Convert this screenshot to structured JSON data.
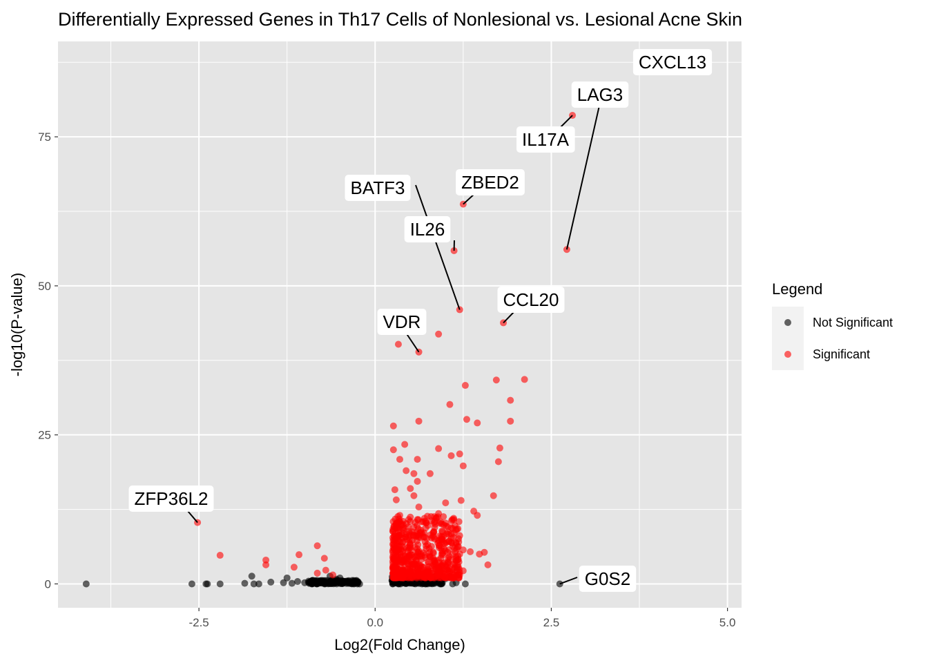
{
  "chart_data": {
    "type": "scatter",
    "title": "Differentially Expressed Genes in Th17 Cells of Nonlesional vs. Lesional Acne Skin",
    "xlabel": "Log2(Fold Change)",
    "ylabel": "-log10(P-value)",
    "xlim": [
      -4.5,
      5.2
    ],
    "ylim": [
      -4,
      91
    ],
    "x_ticks": [
      -2.5,
      0.0,
      2.5,
      5.0
    ],
    "x_tick_labels": [
      "-2.5",
      "0.0",
      "2.5",
      "5.0"
    ],
    "y_ticks": [
      0,
      25,
      50,
      75
    ],
    "y_tick_labels": [
      "0",
      "25",
      "50",
      "75"
    ],
    "grid": true,
    "legend": {
      "title": "Legend",
      "position": "right",
      "entries": [
        {
          "name": "Not Significant",
          "color": "#000000"
        },
        {
          "name": "Significant",
          "color": "#ff0000"
        }
      ]
    },
    "series": [
      {
        "name": "Not Significant",
        "color": "#000000",
        "points": [
          [
            -4.1,
            0
          ],
          [
            -2.6,
            0
          ],
          [
            -2.4,
            0
          ],
          [
            -2.38,
            0
          ],
          [
            -2.2,
            0
          ],
          [
            -1.85,
            0.1
          ],
          [
            -1.75,
            1.3
          ],
          [
            -1.72,
            0
          ],
          [
            -1.65,
            0
          ],
          [
            -1.48,
            0.3
          ],
          [
            -1.3,
            0.2
          ],
          [
            -1.25,
            1.0
          ],
          [
            -1.18,
            0.1
          ],
          [
            -1.1,
            0.4
          ],
          [
            -1.0,
            0.2
          ],
          [
            -0.9,
            0
          ],
          [
            -0.8,
            0.1
          ],
          [
            -0.7,
            0.2
          ],
          [
            -0.64,
            1.3
          ],
          [
            -0.6,
            0.3
          ],
          [
            -0.55,
            0.8
          ],
          [
            -0.5,
            1.0
          ],
          [
            -0.45,
            0.4
          ],
          [
            -0.4,
            0.2
          ],
          [
            -0.35,
            0.1
          ],
          [
            -0.3,
            0
          ],
          [
            -0.25,
            0
          ],
          [
            -0.22,
            0
          ],
          [
            0.25,
            0
          ],
          [
            0.3,
            0.5
          ],
          [
            0.35,
            1.0
          ],
          [
            0.4,
            0.3
          ],
          [
            0.5,
            0.8
          ],
          [
            0.6,
            0.4
          ],
          [
            0.7,
            1.1
          ],
          [
            0.75,
            0.2
          ],
          [
            0.8,
            0.6
          ],
          [
            0.9,
            0.3
          ],
          [
            1.0,
            0.9
          ],
          [
            1.05,
            1.2
          ],
          [
            1.1,
            0
          ],
          [
            1.15,
            0.2
          ],
          [
            1.28,
            0
          ],
          [
            2.62,
            0
          ]
        ]
      },
      {
        "name": "Significant",
        "color": "#ff0000",
        "points": [
          [
            -2.52,
            10.3
          ],
          [
            -2.2,
            4.8
          ],
          [
            -1.55,
            4.0
          ],
          [
            -1.55,
            3.2
          ],
          [
            -1.15,
            2.8
          ],
          [
            -1.08,
            4.9
          ],
          [
            -0.82,
            6.4
          ],
          [
            -0.82,
            1.8
          ],
          [
            -0.72,
            4.3
          ],
          [
            -0.7,
            2.3
          ],
          [
            -0.6,
            1.5
          ],
          [
            0.26,
            26.5
          ],
          [
            0.26,
            22.5
          ],
          [
            0.28,
            15.8
          ],
          [
            0.3,
            14.1
          ],
          [
            0.33,
            10.1
          ],
          [
            0.35,
            20.9
          ],
          [
            0.42,
            23.4
          ],
          [
            0.44,
            19.0
          ],
          [
            0.5,
            16.0
          ],
          [
            0.55,
            14.8
          ],
          [
            0.55,
            18.5
          ],
          [
            0.6,
            20.9
          ],
          [
            0.6,
            17.2
          ],
          [
            0.62,
            12.9
          ],
          [
            0.62,
            27.3
          ],
          [
            0.32,
            8.0
          ],
          [
            0.35,
            11.5
          ],
          [
            0.4,
            9.0
          ],
          [
            0.45,
            7.5
          ],
          [
            0.5,
            11.2
          ],
          [
            0.55,
            9.5
          ],
          [
            0.6,
            10.8
          ],
          [
            0.65,
            8.7
          ],
          [
            0.7,
            11.0
          ],
          [
            0.75,
            9.8
          ],
          [
            0.8,
            7.7
          ],
          [
            0.85,
            10.5
          ],
          [
            0.9,
            11.8
          ],
          [
            0.95,
            8.9
          ],
          [
            1.0,
            10.2
          ],
          [
            1.05,
            7.2
          ],
          [
            1.1,
            9.3
          ],
          [
            1.15,
            6.8
          ],
          [
            1.2,
            8.1
          ],
          [
            1.25,
            5.7
          ],
          [
            0.3,
            3.0
          ],
          [
            0.35,
            5.2
          ],
          [
            0.4,
            2.1
          ],
          [
            0.45,
            4.4
          ],
          [
            0.5,
            6.1
          ],
          [
            0.55,
            3.3
          ],
          [
            0.6,
            5.9
          ],
          [
            0.65,
            2.6
          ],
          [
            0.7,
            4.8
          ],
          [
            0.75,
            3.7
          ],
          [
            0.8,
            6.3
          ],
          [
            0.85,
            2.9
          ],
          [
            0.9,
            4.0
          ],
          [
            0.95,
            5.5
          ],
          [
            1.0,
            3.1
          ],
          [
            1.05,
            4.6
          ],
          [
            1.1,
            2.4
          ],
          [
            1.15,
            3.9
          ],
          [
            1.2,
            5.0
          ],
          [
            1.25,
            2.2
          ],
          [
            0.3,
            1.6
          ],
          [
            0.4,
            1.2
          ],
          [
            0.5,
            2.0
          ],
          [
            0.6,
            1.4
          ],
          [
            0.7,
            1.8
          ],
          [
            0.8,
            1.1
          ],
          [
            0.9,
            1.9
          ],
          [
            1.0,
            1.3
          ],
          [
            1.1,
            1.7
          ],
          [
            1.2,
            1.5
          ],
          [
            0.78,
            18.5
          ],
          [
            0.9,
            22.7
          ],
          [
            1.0,
            13.6
          ],
          [
            1.08,
            21.5
          ],
          [
            1.2,
            21.8
          ],
          [
            1.25,
            19.8
          ],
          [
            1.22,
            14.0
          ],
          [
            1.45,
            11.5
          ],
          [
            1.4,
            12.2
          ],
          [
            1.35,
            5.4
          ],
          [
            1.48,
            5.0
          ],
          [
            1.55,
            5.3
          ],
          [
            1.6,
            3.2
          ],
          [
            1.68,
            14.8
          ],
          [
            1.75,
            20.5
          ],
          [
            1.77,
            22.8
          ],
          [
            1.72,
            34.2
          ],
          [
            1.28,
            33.3
          ],
          [
            1.06,
            30.1
          ],
          [
            1.3,
            27.6
          ],
          [
            1.45,
            27.0
          ],
          [
            1.92,
            27.3
          ],
          [
            1.92,
            30.8
          ],
          [
            2.12,
            34.3
          ],
          [
            0.33,
            40.2
          ],
          [
            0.9,
            41.9
          ],
          [
            0.62,
            38.9
          ],
          [
            1.2,
            46.0
          ],
          [
            1.82,
            43.8
          ],
          [
            1.12,
            55.9
          ],
          [
            1.25,
            63.7
          ],
          [
            2.72,
            56.1
          ],
          [
            2.8,
            78.6
          ]
        ]
      }
    ],
    "annotations": [
      {
        "gene": "CXCL13"
      },
      {
        "gene": "LAG3"
      },
      {
        "gene": "IL17A"
      },
      {
        "gene": "ZBED2"
      },
      {
        "gene": "BATF3"
      },
      {
        "gene": "IL26"
      },
      {
        "gene": "CCL20"
      },
      {
        "gene": "VDR"
      },
      {
        "gene": "ZFP36L2"
      },
      {
        "gene": "G0S2"
      }
    ]
  }
}
